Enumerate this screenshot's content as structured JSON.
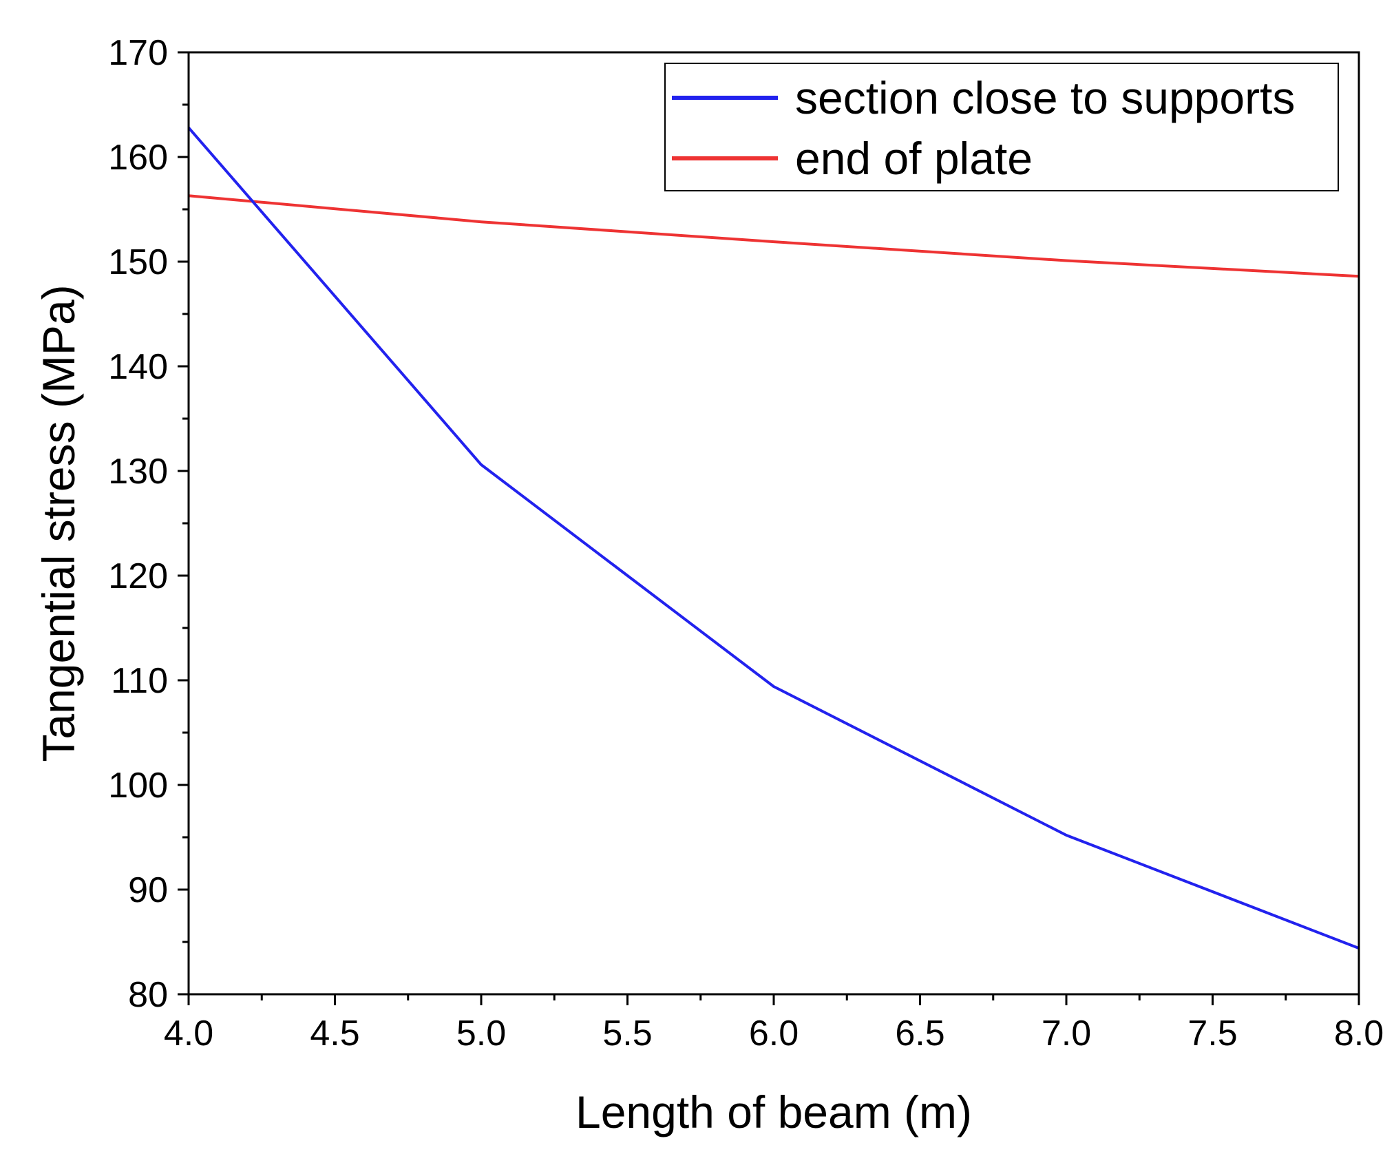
{
  "chart_data": {
    "type": "line",
    "title": "",
    "xlabel": "Length of beam (m)",
    "ylabel": "Tangential stress (MPa)",
    "xlim": [
      4.0,
      8.0
    ],
    "ylim": [
      80,
      170
    ],
    "x_ticks": [
      "4.0",
      "4.5",
      "5.0",
      "5.5",
      "6.0",
      "6.5",
      "7.0",
      "7.5",
      "8.0"
    ],
    "y_ticks": [
      "80",
      "90",
      "100",
      "110",
      "120",
      "130",
      "140",
      "150",
      "160",
      "170"
    ],
    "grid": false,
    "legend_position": "top-right",
    "series": [
      {
        "name": "section close to supports",
        "color": "#2222ee",
        "x": [
          4.0,
          5.0,
          6.0,
          7.0,
          8.0
        ],
        "y": [
          162.8,
          130.6,
          109.4,
          95.2,
          84.4
        ]
      },
      {
        "name": "end of plate",
        "color": "#ee3333",
        "x": [
          4.0,
          5.0,
          6.0,
          7.0,
          8.0
        ],
        "y": [
          156.3,
          153.8,
          151.9,
          150.1,
          148.6
        ]
      }
    ]
  }
}
